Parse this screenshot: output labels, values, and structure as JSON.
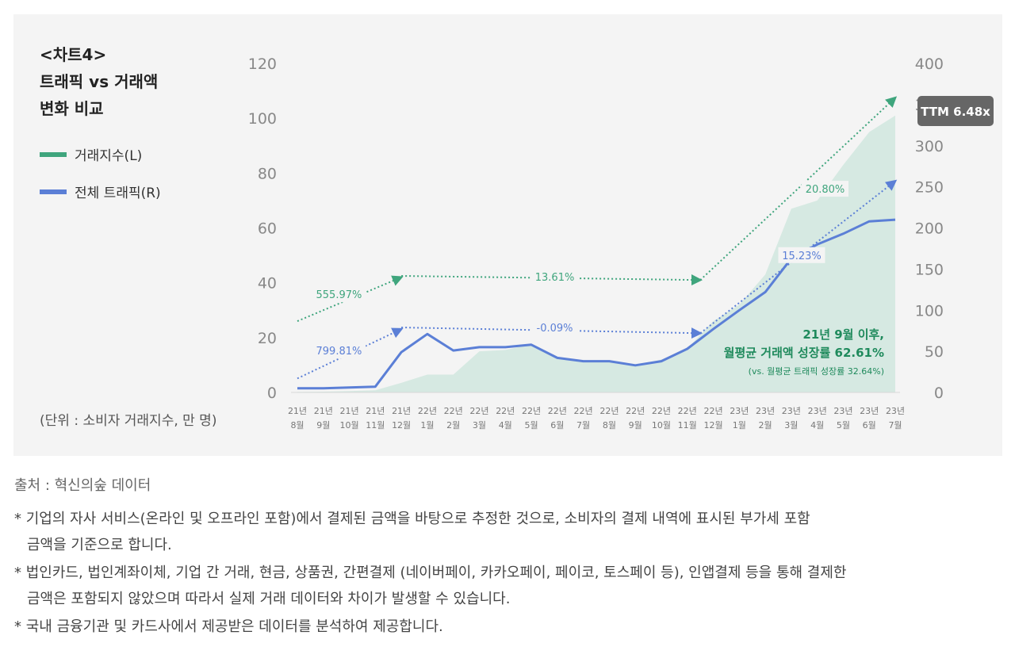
{
  "chart_data": {
    "type": "area+line",
    "title": "<차트4>",
    "title_lines": [
      "<차트4>",
      "트래픽 vs 거래액",
      "변화 비교"
    ],
    "categories": [
      [
        "21년",
        "8월"
      ],
      [
        "21년",
        "9월"
      ],
      [
        "21년",
        "10월"
      ],
      [
        "21년",
        "11월"
      ],
      [
        "21년",
        "12월"
      ],
      [
        "22년",
        "1월"
      ],
      [
        "22년",
        "2월"
      ],
      [
        "22년",
        "3월"
      ],
      [
        "22년",
        "4월"
      ],
      [
        "22년",
        "5월"
      ],
      [
        "22년",
        "6월"
      ],
      [
        "22년",
        "7월"
      ],
      [
        "22년",
        "8월"
      ],
      [
        "22년",
        "9월"
      ],
      [
        "22년",
        "10월"
      ],
      [
        "22년",
        "11월"
      ],
      [
        "22년",
        "12월"
      ],
      [
        "23년",
        "1월"
      ],
      [
        "23년",
        "2월"
      ],
      [
        "23년",
        "3월"
      ],
      [
        "23년",
        "4월"
      ],
      [
        "23년",
        "5월"
      ],
      [
        "23년",
        "6월"
      ],
      [
        "23년",
        "7월"
      ]
    ],
    "series": [
      {
        "name": "거래지수(L)",
        "axis": "left",
        "kind": "area",
        "color": "#d6e9e2",
        "legend_color": "#3fa57d",
        "values": [
          0.2,
          0.3,
          0.5,
          0.8,
          3.5,
          6.5,
          6.5,
          15,
          15.5,
          17.5,
          12.5,
          11.5,
          11.5,
          10,
          12,
          16,
          26,
          32,
          43,
          67,
          70,
          83,
          95,
          101
        ]
      },
      {
        "name": "전체 트래픽(R)",
        "axis": "right",
        "kind": "line",
        "color": "#5b7fd6",
        "values": [
          5,
          5,
          6,
          7,
          49,
          71,
          51,
          55,
          55,
          58,
          42,
          38,
          38,
          33,
          38,
          53,
          77,
          100,
          122,
          163,
          180,
          193,
          208,
          210
        ]
      }
    ],
    "y_left": {
      "min": 0,
      "max": 120,
      "ticks": [
        0,
        20,
        40,
        60,
        80,
        100,
        120
      ]
    },
    "y_right": {
      "min": 0,
      "max": 400,
      "ticks": [
        0,
        50,
        100,
        150,
        200,
        250,
        300,
        350,
        400
      ]
    },
    "trends": [
      {
        "label": "555.97%",
        "series": "거래지수(L)",
        "color": "#3fa57d",
        "from_index": 0,
        "from_value": 26,
        "to_index": 4,
        "to_value": 42,
        "label_index": 1.6,
        "label_value": 35.5
      },
      {
        "label": "13.61%",
        "series": "거래지수(L)",
        "color": "#3fa57d",
        "from_index": 4,
        "from_value": 42.5,
        "to_index": 15.5,
        "to_value": 41,
        "label_index": 9.9,
        "label_value": 42
      },
      {
        "label": "20.80%",
        "series": "거래지수(L)",
        "color": "#3fa57d",
        "from_index": 15.5,
        "from_value": 41,
        "to_index": 23,
        "to_value": 107.5,
        "label_index": 20.3,
        "label_value": 74
      },
      {
        "label": "799.81%",
        "series": "전체 트래픽(R)",
        "color": "#5b7fd6",
        "from_index": 0,
        "from_value": 17,
        "to_index": 4,
        "to_value": 77,
        "label_index": 1.6,
        "label_value": 50
      },
      {
        "label": "-0.09%",
        "series": "전체 트래픽(R)",
        "color": "#5b7fd6",
        "from_index": 4,
        "from_value": 79,
        "to_index": 15.5,
        "to_value": 72,
        "label_index": 9.9,
        "label_value": 78
      },
      {
        "label": "15.23%",
        "series": "전체 트래픽(R)",
        "color": "#5b7fd6",
        "from_index": 15.5,
        "from_value": 72,
        "to_index": 23,
        "to_value": 257,
        "label_index": 19.4,
        "label_value": 166
      }
    ],
    "annotation": {
      "line1": "21년 9월 이후,",
      "line2": "월평균 거래액 성장률 62.61%",
      "line3": "(vs. 월평균 트래픽 성장률 32.64%)",
      "color": "#1f8a5c"
    },
    "badge": "TTM 6.48x",
    "unit_note": "(단위 : 소비자 거래지수, 만 명)"
  },
  "footer": {
    "source": "출처 : 혁신의숲 데이터",
    "notes": [
      [
        "* 기업의 자사 서비스(온라인 및 오프라인 포함)에서 결제된 금액을 바탕으로 추정한 것으로, 소비자의 결제 내역에 표시된 부가세 포함",
        "금액을 기준으로 합니다."
      ],
      [
        "* 법인카드, 법인계좌이체, 기업 간 거래, 현금, 상품권, 간편결제 (네이버페이, 카카오페이, 페이코, 토스페이 등), 인앱결제 등을 통해 결제한",
        "금액은 포함되지 않았으며 따라서 실제 거래 데이터와 차이가 발생할 수 있습니다."
      ],
      [
        "* 국내 금융기관 및 카드사에서 제공받은 데이터를 분석하여 제공합니다."
      ]
    ]
  }
}
